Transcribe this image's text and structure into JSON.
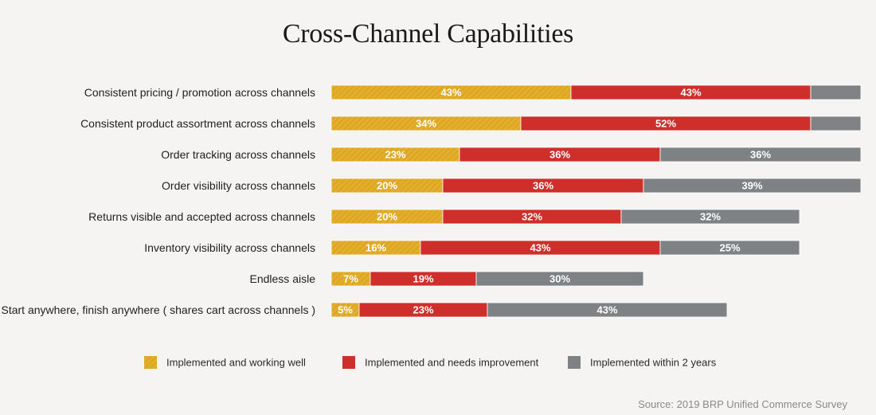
{
  "chart_data": {
    "type": "bar",
    "orientation": "horizontal",
    "stacked": true,
    "title": "Cross-Channel Capabilities",
    "xlabel": "",
    "ylabel": "",
    "xlim": [
      0,
      100
    ],
    "categories": [
      "Consistent pricing / promotion across channels",
      "Consistent product assortment across channels",
      "Order tracking across channels",
      "Order visibility across channels",
      "Returns visible and accepted across channels",
      "Inventory visibility across channels",
      "Endless aisle",
      "Start anywhere, finish anywhere ( shares cart across channels )"
    ],
    "series": [
      {
        "name": "Implemented and working well",
        "color": "#e2ae2c",
        "pattern": "hatched",
        "values": [
          43,
          34,
          23,
          20,
          20,
          16,
          7,
          5
        ],
        "labels": [
          "43%",
          "34%",
          "23%",
          "20%",
          "20%",
          "16%",
          "7%",
          "5%"
        ]
      },
      {
        "name": "Implemented and needs improvement",
        "color": "#cf2f2b",
        "values": [
          43,
          52,
          36,
          36,
          32,
          43,
          19,
          23
        ],
        "labels": [
          "43%",
          "52%",
          "36%",
          "36%",
          "32%",
          "43%",
          "19%",
          "23%"
        ]
      },
      {
        "name": "Implemented within 2 years",
        "color": "#7e8285",
        "values": [
          9,
          9,
          36,
          39,
          32,
          25,
          30,
          43
        ],
        "labels": [
          "",
          "",
          "36%",
          "39%",
          "32%",
          "25%",
          "30%",
          "43%"
        ]
      }
    ],
    "legend_position": "bottom"
  },
  "source": "Source: 2019 BRP Unified Commerce Survey"
}
